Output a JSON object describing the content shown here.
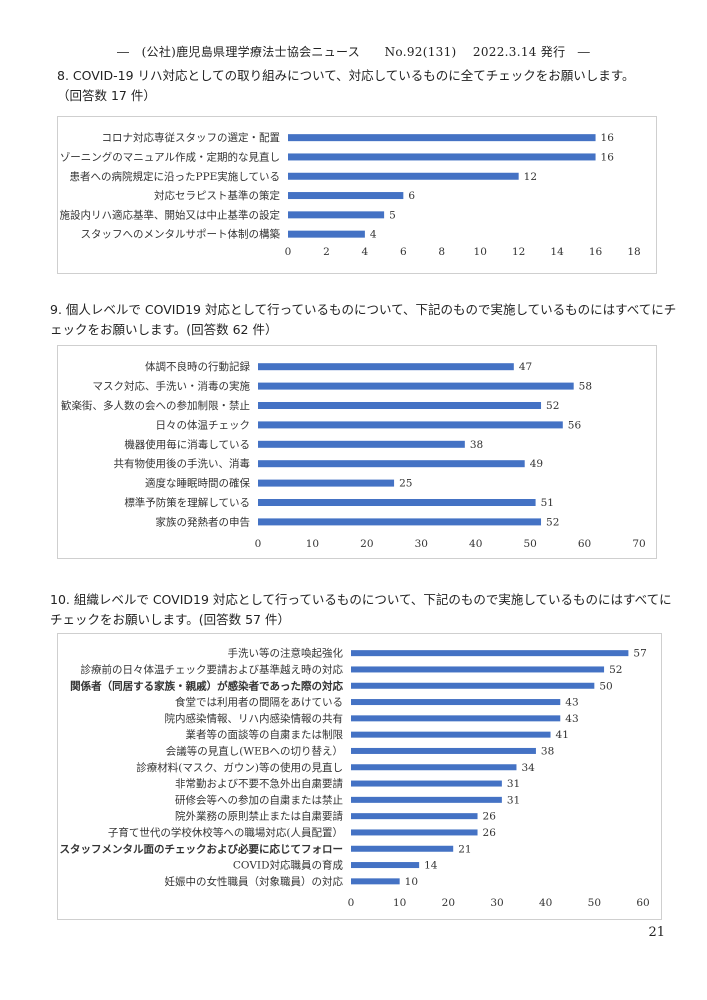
{
  "header": "―　(公社)鹿児島県理学療法士協会ニュース　　No.92(131)　 2022.3.14 発行　―",
  "page_number": "21",
  "questions": [
    {
      "line1": "8.  COVID-19 リハ対応としての取り組みについて、対応しているものに全てチェックをお願いします。",
      "line2": "（回答数 17 件）"
    },
    {
      "line1": "9.  個人レベルで COVID19 対応として行っているものについて、下記のもので実施しているものにはすべてにチ",
      "line2": "ェックをお願いします。(回答数 62 件）"
    },
    {
      "line1": "10.  組織レベルで COVID19 対応として行っているものについて、下記のもので実施しているものにはすべてに",
      "line2": "チェックをお願いします。(回答数 57 件）"
    }
  ],
  "bar_color": "#4472C4",
  "chart_data": [
    {
      "type": "bar",
      "orientation": "horizontal",
      "categories": [
        "コロナ対応専従スタッフの選定・配置",
        "ゾーニングのマニュアル作成・定期的な見直し",
        "患者への病院規定に沿ったPPE実施している",
        "対応セラピスト基準の策定",
        "施設内リハ適応基準、開始又は中止基準の設定",
        "スタッフへのメンタルサポート体制の構築"
      ],
      "values": [
        16,
        16,
        12,
        6,
        5,
        4
      ],
      "xlim": [
        0,
        18
      ],
      "ticks": [
        0,
        2,
        4,
        6,
        8,
        10,
        12,
        14,
        16,
        18
      ],
      "bold": [],
      "grid": false
    },
    {
      "type": "bar",
      "orientation": "horizontal",
      "categories": [
        "体調不良時の行動記録",
        "マスク対応、手洗い・消毒の実施",
        "歓楽街、多人数の会への参加制限・禁止",
        "日々の体温チェック",
        "機器使用毎に消毒している",
        "共有物使用後の手洗い、消毒",
        "適度な睡眠時間の確保",
        "標準予防策を理解している",
        "家族の発熱者の申告"
      ],
      "values": [
        47,
        58,
        52,
        56,
        38,
        49,
        25,
        51,
        52
      ],
      "xlim": [
        0,
        70
      ],
      "ticks": [
        0,
        10,
        20,
        30,
        40,
        50,
        60,
        70
      ],
      "bold": [],
      "grid": false
    },
    {
      "type": "bar",
      "orientation": "horizontal",
      "categories": [
        "手洗い等の注意喚起強化",
        "診療前の日々体温チェック要請および基準越え時の対応",
        "関係者（同居する家族・親戚）が感染者であった際の対応",
        "食堂では利用者の間隔をあけている",
        "院内感染情報、リハ内感染情報の共有",
        "業者等の面談等の自粛または制限",
        "会議等の見直し(WEBへの切り替え）",
        "診療材料(マスク、ガウン)等の使用の見直し",
        "非常勤および不要不急外出自粛要請",
        "研修会等への参加の自粛または禁止",
        "院外業務の原則禁止または自粛要請",
        "子育て世代の学校休校等への職場対応(人員配置）",
        "スタッフメンタル面のチェックおよび必要に応じてフォロー",
        "COVID対応職員の育成",
        "妊娠中の女性職員（対象職員）の対応"
      ],
      "values": [
        57,
        52,
        50,
        43,
        43,
        41,
        38,
        34,
        31,
        31,
        26,
        26,
        21,
        14,
        10
      ],
      "xlim": [
        0,
        60
      ],
      "ticks": [
        0,
        10,
        20,
        30,
        40,
        50,
        60
      ],
      "bold": [
        2,
        12
      ],
      "grid": false
    }
  ]
}
